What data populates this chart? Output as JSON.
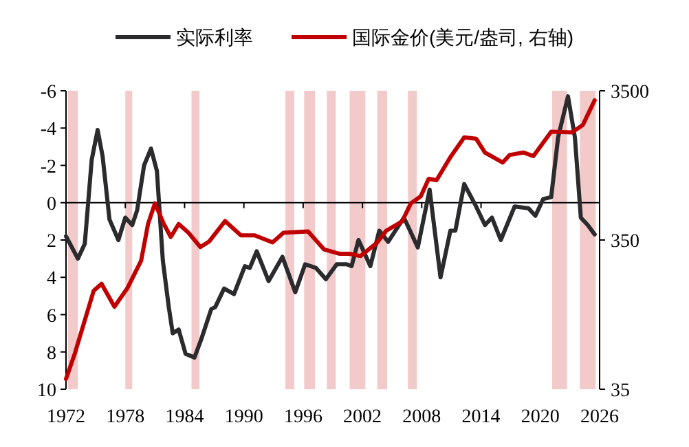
{
  "chart_data": {
    "type": "line",
    "x": [
      1972,
      1973.2,
      1973.9,
      1974.6,
      1975.2,
      1975.7,
      1976.4,
      1977.3,
      1978.0,
      1978.7,
      1979.2,
      1979.9,
      1980.6,
      1981.2,
      1981.8,
      1982.4,
      1982.8,
      1983.4,
      1984.1,
      1985.0,
      1985.7,
      1986.7,
      1987.1,
      1988.0,
      1989.0,
      1990.1,
      1990.6,
      1991.3,
      1992.5,
      1993.9,
      1995.2,
      1996.2,
      1997.3,
      1998.3,
      1999.4,
      2000.4,
      2000.9,
      2001.6,
      2002.8,
      2003.7,
      2004.6,
      2006.2,
      2007.6,
      2008.8,
      2009.9,
      2010.9,
      2011.4,
      2012.3,
      2013.5,
      2014.4,
      2015.1,
      2016.0,
      2017.4,
      2018.8,
      2019.5,
      2020.3,
      2021.1,
      2021.8,
      2022.8,
      2023.5,
      2024.1,
      2024.8,
      2025.5
    ],
    "series": [
      {
        "name": "实际利率",
        "color": "#2b2b2e",
        "values": [
          1.8,
          3.0,
          2.2,
          -2.3,
          -3.9,
          -2.5,
          0.9,
          2.0,
          0.8,
          1.2,
          0.4,
          -2.0,
          -2.9,
          -1.7,
          3.1,
          5.6,
          7.0,
          6.8,
          8.1,
          8.3,
          7.3,
          5.7,
          5.6,
          4.6,
          4.9,
          3.4,
          3.5,
          2.6,
          4.2,
          2.9,
          4.8,
          3.3,
          3.5,
          4.1,
          3.3,
          3.3,
          3.4,
          2.0,
          3.4,
          1.5,
          2.1,
          0.8,
          2.4,
          -0.7,
          4.0,
          1.5,
          1.5,
          -1.0,
          0.2,
          1.2,
          0.8,
          2.0,
          0.2,
          0.3,
          0.7,
          -0.2,
          -0.3,
          -3.5,
          -5.7,
          -3.5,
          0.8,
          1.2,
          1.7
        ]
      },
      {
        "name": "国际金价(美元/盎司, 右轴)",
        "color": "#c00000",
        "axis": "y2",
        "x": [
          1972,
          1972.9,
          1973.6,
          1974.8,
          1975.6,
          1976.9,
          1978.2,
          1979.6,
          1980.3,
          1981.0,
          1981.9,
          1982.6,
          1983.4,
          1984.4,
          1985.6,
          1986.5,
          1988.1,
          1989.7,
          1991.1,
          1992.9,
          1994.0,
          1996.5,
          1998.1,
          1999.7,
          2000.7,
          2001.8,
          2003.5,
          2004.4,
          2006.0,
          2006.9,
          2007.9,
          2008.7,
          2009.5,
          2010.9,
          2012.3,
          2013.5,
          2014.4,
          2016.2,
          2016.9,
          2018.3,
          2019.3,
          2021.1,
          2023.2,
          2024.3,
          2025.5
        ],
        "values": [
          41,
          61,
          87,
          160,
          178,
          125,
          166,
          254,
          448,
          617,
          448,
          367,
          448,
          391,
          314,
          343,
          469,
          376,
          376,
          337,
          391,
          400,
          303,
          283,
          283,
          273,
          337,
          404,
          465,
          617,
          687,
          900,
          881,
          1258,
          1707,
          1670,
          1350,
          1157,
          1300,
          1350,
          1277,
          1860,
          1840,
          2065,
          3020
        ]
      }
    ],
    "xlim": [
      1972,
      2026
    ],
    "xticks": [
      1972,
      1978,
      1984,
      1990,
      1996,
      2002,
      2008,
      2014,
      2020,
      2026
    ],
    "ylim": [
      10,
      -6
    ],
    "yticks": [
      -6,
      -4,
      -2,
      0,
      2,
      4,
      6,
      8,
      10
    ],
    "y2lim": [
      35,
      3500
    ],
    "y2ticks": [
      35,
      350,
      3500
    ],
    "log": "y2",
    "bands": [
      {
        "axis": "x",
        "from": 1972.2,
        "to": 1973.2,
        "color": "#f2caca"
      },
      {
        "axis": "x",
        "from": 1978.0,
        "to": 1978.7,
        "color": "#f2caca"
      },
      {
        "axis": "x",
        "from": 1984.7,
        "to": 1985.5,
        "color": "#f2caca"
      },
      {
        "axis": "x",
        "from": 1994.2,
        "to": 1995.1,
        "color": "#f2caca"
      },
      {
        "axis": "x",
        "from": 1996.1,
        "to": 1997.2,
        "color": "#f2caca"
      },
      {
        "axis": "x",
        "from": 1998.4,
        "to": 1999.3,
        "color": "#f2caca"
      },
      {
        "axis": "x",
        "from": 2000.7,
        "to": 2002.3,
        "color": "#f2caca"
      },
      {
        "axis": "x",
        "from": 2003.5,
        "to": 2004.5,
        "color": "#f2caca"
      },
      {
        "axis": "x",
        "from": 2006.6,
        "to": 2007.5,
        "color": "#f2caca"
      },
      {
        "axis": "x",
        "from": 2021.2,
        "to": 2022.7,
        "color": "#f2caca"
      },
      {
        "axis": "x",
        "from": 2024.0,
        "to": 2025.6,
        "color": "#f2caca"
      }
    ],
    "ref_lines": [
      {
        "axis": "y",
        "value": 0,
        "color": "#000000",
        "line_style": "solid"
      }
    ],
    "legend": "top",
    "marker": "none",
    "line_style": "solid"
  }
}
